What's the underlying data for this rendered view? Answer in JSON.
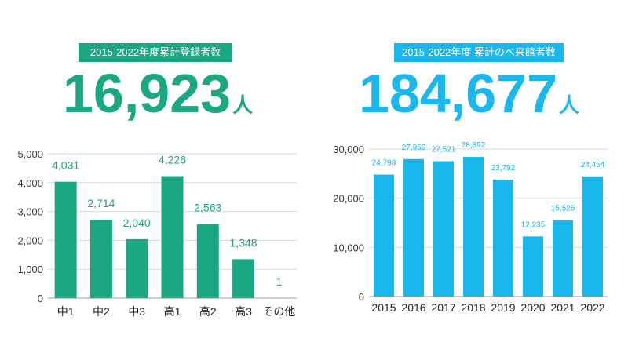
{
  "left": {
    "badge": "2015-2022年度累計登録者数",
    "total": "16,923",
    "unit": "人"
  },
  "right": {
    "badge": "2015-2022年度 累計のべ来館者数",
    "total": "184,677",
    "unit": "人"
  },
  "colors": {
    "left_accent": "#1aa781",
    "right_accent": "#19b7ec",
    "gridline": "#d9d9d9"
  },
  "chart_data": [
    {
      "type": "bar",
      "categories": [
        "中1",
        "中2",
        "中3",
        "高1",
        "高2",
        "高3",
        "その他"
      ],
      "values": [
        4031,
        2714,
        2040,
        4226,
        2563,
        1348,
        1
      ],
      "data_labels": [
        "4,031",
        "2,714",
        "2,040",
        "4,226",
        "2,563",
        "1,348",
        "1"
      ],
      "yticks": [
        "0",
        "1,000",
        "2,000",
        "3,000",
        "4,000",
        "5,000"
      ],
      "ylim": [
        0,
        5000
      ],
      "grid": true,
      "color": "#1aa781"
    },
    {
      "type": "bar",
      "categories": [
        "2015",
        "2016",
        "2017",
        "2018",
        "2019",
        "2020",
        "2021",
        "2022"
      ],
      "values": [
        24798,
        27959,
        27521,
        28392,
        23792,
        12235,
        15526,
        24454
      ],
      "data_labels": [
        "24,798",
        "27,959",
        "27,521",
        "28,392",
        "23,792",
        "12,235",
        "15,526",
        "24,454"
      ],
      "yticks": [
        "0",
        "10,000",
        "20,000",
        "30,000"
      ],
      "ylim": [
        0,
        30000
      ],
      "grid": true,
      "color": "#19b7ec"
    }
  ]
}
